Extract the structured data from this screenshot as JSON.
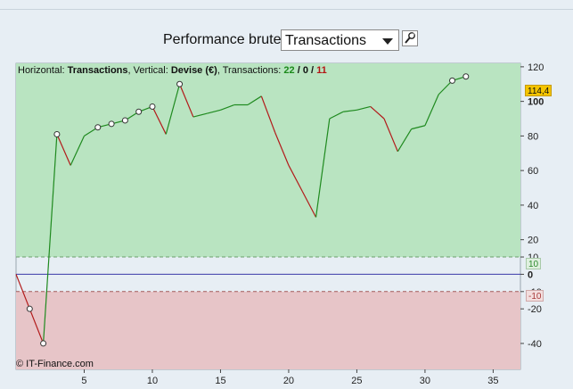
{
  "header": {
    "title": "Performance brute",
    "select_value": "Transactions",
    "wrench_icon": "wrench-icon"
  },
  "info": {
    "horizontal_label": "Horizontal:",
    "horizontal_value": "Transactions",
    "vertical_label": "Vertical:",
    "vertical_value": "Devise (€)",
    "transactions_label": "Transactions:",
    "win": "22",
    "sep1": "/",
    "neutral": "0",
    "sep2": "/",
    "loss": "11"
  },
  "credit": "© IT-Finance.com",
  "badges": {
    "last": "114,4",
    "up": "10",
    "down": "-10"
  },
  "colors": {
    "green_zone": "#b9e4c1",
    "red_zone": "#e7c5c8",
    "up_line": "#1f8a1f",
    "down_line": "#b21a1a",
    "zero_line": "#3a3aa8"
  },
  "chart_data": {
    "type": "line",
    "xlabel": "",
    "ylabel": "",
    "xlim": [
      0,
      37
    ],
    "ylim": [
      -55,
      122
    ],
    "xticks": [
      5,
      10,
      15,
      20,
      25,
      30,
      35
    ],
    "yticks": [
      -40,
      -20,
      -10,
      0,
      10,
      20,
      40,
      60,
      80,
      100,
      120
    ],
    "ytick_labels": [
      "-40",
      "-20",
      "-10",
      "0",
      "10",
      "20",
      "40",
      "60",
      "80",
      "100",
      "120"
    ],
    "bands": {
      "upper": 10,
      "lower": -10
    },
    "x": [
      0,
      1,
      2,
      3,
      4,
      5,
      6,
      7,
      8,
      9,
      10,
      11,
      12,
      13,
      14,
      15,
      16,
      17,
      18,
      19,
      20,
      21,
      22,
      23,
      24,
      25,
      26,
      27,
      28,
      29,
      30,
      31,
      32,
      33
    ],
    "values": [
      0,
      -20,
      -40,
      81,
      63,
      80,
      85,
      87,
      89,
      94,
      97,
      81,
      110,
      91,
      93,
      95,
      98,
      98,
      103,
      82,
      63,
      48,
      33,
      90,
      94,
      95,
      97,
      90,
      71,
      84,
      86,
      104,
      112,
      114.4
    ],
    "markers": [
      1,
      2,
      3,
      6,
      7,
      8,
      9,
      10,
      12,
      32,
      33
    ],
    "last_value": 114.4
  }
}
